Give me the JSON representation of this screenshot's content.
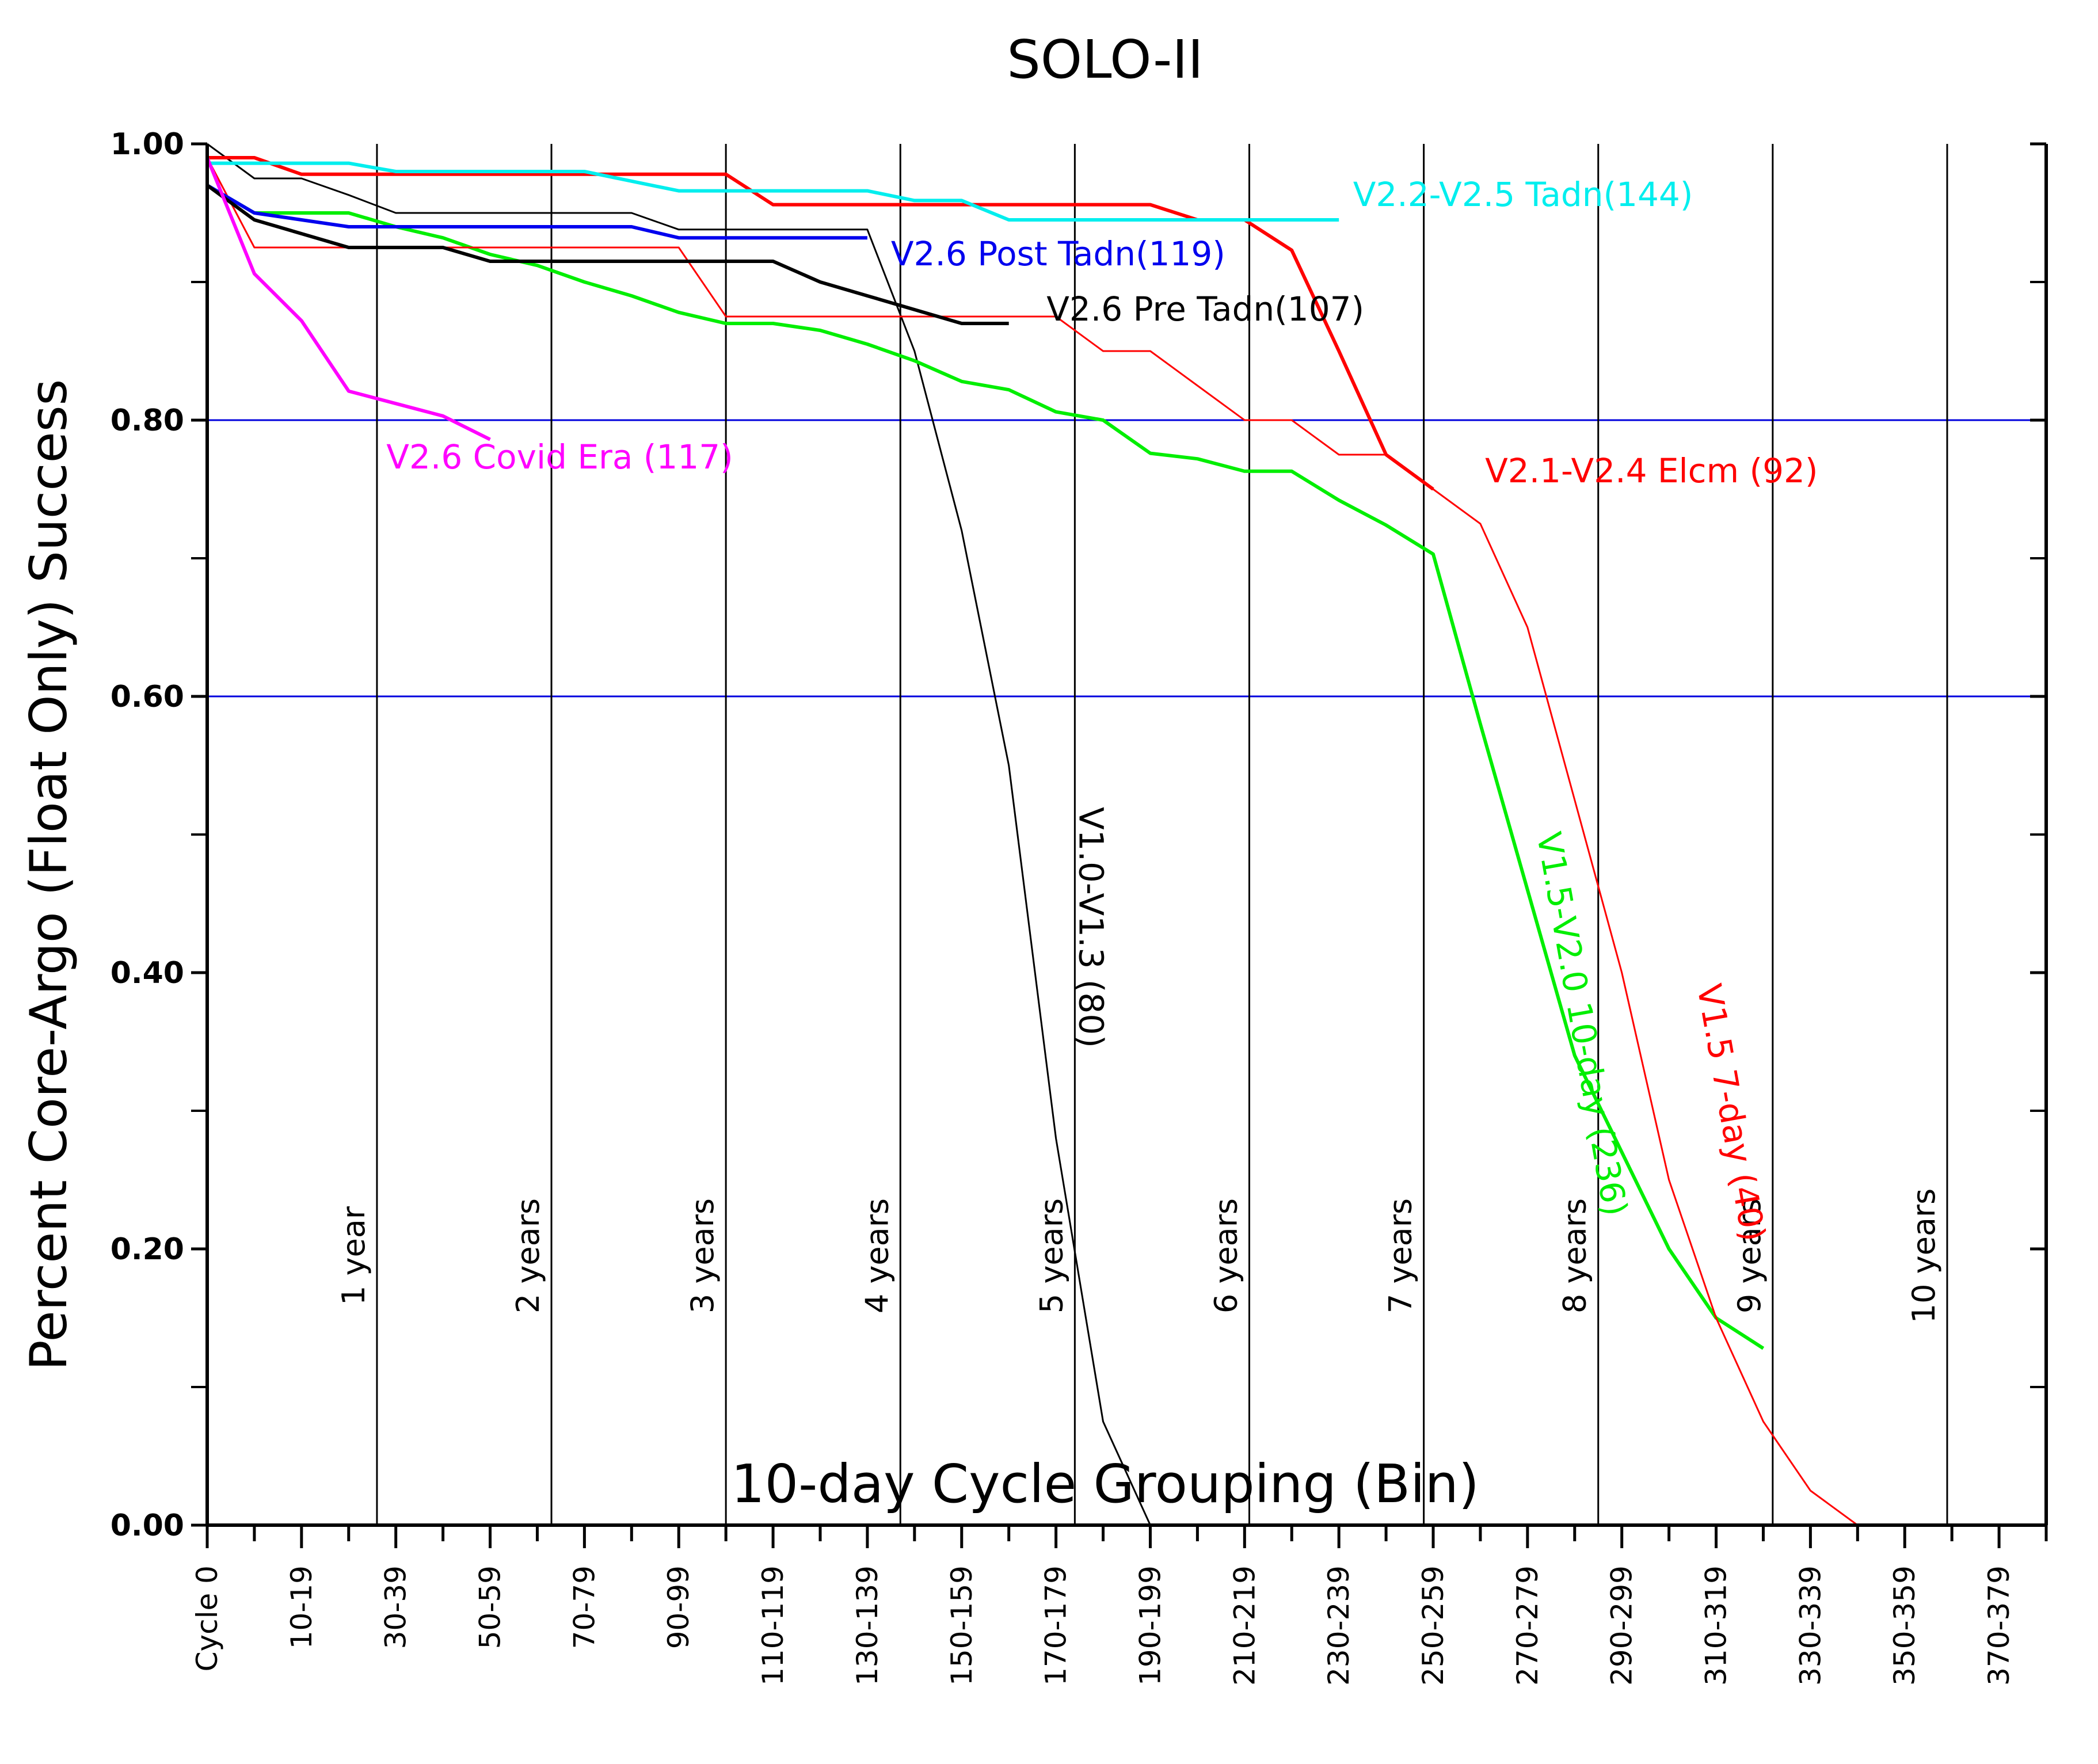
{
  "chart_data": {
    "type": "line",
    "title": "SOLO-II",
    "xlabel": "10-day Cycle Grouping (Bin)",
    "ylabel": "Percent Core-Argo (Float Only) Success",
    "x_unit": "cycle",
    "xlim": [
      0,
      390
    ],
    "ylim": [
      0,
      1
    ],
    "yticks": [
      {
        "v": 0.0,
        "label": "0.00"
      },
      {
        "v": 0.2,
        "label": "0.20"
      },
      {
        "v": 0.4,
        "label": "0.40"
      },
      {
        "v": 0.6,
        "label": "0.60"
      },
      {
        "v": 0.8,
        "label": "0.80"
      },
      {
        "v": 1.0,
        "label": "1.00"
      }
    ],
    "yminor": [
      0.1,
      0.3,
      0.5,
      0.7,
      0.9
    ],
    "xticks": [
      {
        "v": 0,
        "label": "Cycle 0"
      },
      {
        "v": 20,
        "label": "10-19"
      },
      {
        "v": 40,
        "label": "30-39"
      },
      {
        "v": 60,
        "label": "50-59"
      },
      {
        "v": 80,
        "label": "70-79"
      },
      {
        "v": 100,
        "label": "90-99"
      },
      {
        "v": 120,
        "label": "110-119"
      },
      {
        "v": 140,
        "label": "130-139"
      },
      {
        "v": 160,
        "label": "150-159"
      },
      {
        "v": 180,
        "label": "170-179"
      },
      {
        "v": 200,
        "label": "190-199"
      },
      {
        "v": 220,
        "label": "210-219"
      },
      {
        "v": 240,
        "label": "230-239"
      },
      {
        "v": 260,
        "label": "250-259"
      },
      {
        "v": 280,
        "label": "270-279"
      },
      {
        "v": 300,
        "label": "290-299"
      },
      {
        "v": 320,
        "label": "310-319"
      },
      {
        "v": 340,
        "label": "330-339"
      },
      {
        "v": 360,
        "label": "350-359"
      },
      {
        "v": 380,
        "label": "370-379"
      }
    ],
    "reference_lines": [
      {
        "y": 0.8,
        "color": "#0000dd"
      },
      {
        "y": 0.6,
        "color": "#0000dd"
      }
    ],
    "year_markers": [
      {
        "x": 36,
        "label": "1 year"
      },
      {
        "x": 73,
        "label": "2 years"
      },
      {
        "x": 110,
        "label": "3 years"
      },
      {
        "x": 147,
        "label": "4 years"
      },
      {
        "x": 184,
        "label": "5 years"
      },
      {
        "x": 221,
        "label": "6 years"
      },
      {
        "x": 258,
        "label": "7 years"
      },
      {
        "x": 295,
        "label": "8 years"
      },
      {
        "x": 332,
        "label": "9 years"
      },
      {
        "x": 369,
        "label": "10 years"
      }
    ],
    "series": [
      {
        "name": "V1.0-V1.3 (80)",
        "color": "#000000",
        "width": 2,
        "label_pos": [
          185,
          0.52
        ],
        "label_rotate": 90,
        "x": [
          0,
          10,
          20,
          30,
          40,
          50,
          60,
          70,
          80,
          90,
          100,
          110,
          120,
          130,
          140,
          150,
          160,
          170,
          180,
          190,
          200
        ],
        "y": [
          1.0,
          0.975,
          0.975,
          0.963,
          0.95,
          0.95,
          0.95,
          0.95,
          0.95,
          0.95,
          0.938,
          0.938,
          0.938,
          0.938,
          0.938,
          0.85,
          0.72,
          0.55,
          0.28,
          0.075,
          0.0
        ]
      },
      {
        "name": "V1.5-V2.0 10-day (236)",
        "color": "#00ee00",
        "width": 4,
        "label_pos": [
          282,
          0.5
        ],
        "label_rotate": 80,
        "x": [
          0,
          10,
          20,
          30,
          40,
          50,
          60,
          70,
          80,
          90,
          100,
          110,
          120,
          130,
          140,
          150,
          160,
          170,
          180,
          190,
          200,
          210,
          220,
          230,
          240,
          250,
          260,
          270,
          280,
          290,
          300,
          310,
          320,
          330
        ],
        "y": [
          0.97,
          0.95,
          0.95,
          0.95,
          0.94,
          0.932,
          0.92,
          0.912,
          0.9,
          0.89,
          0.878,
          0.87,
          0.87,
          0.865,
          0.855,
          0.843,
          0.828,
          0.822,
          0.806,
          0.8,
          0.776,
          0.772,
          0.763,
          0.763,
          0.742,
          0.724,
          0.703,
          0.58,
          0.46,
          0.34,
          0.27,
          0.2,
          0.15,
          0.128
        ]
      },
      {
        "name": "V1.5 7-day (40)",
        "color": "#ff0000",
        "width": 2,
        "label_pos": [
          316,
          0.39
        ],
        "label_rotate": 80,
        "x": [
          0,
          10,
          20,
          30,
          40,
          50,
          60,
          70,
          80,
          90,
          100,
          110,
          120,
          130,
          140,
          150,
          160,
          170,
          180,
          190,
          200,
          210,
          220,
          230,
          240,
          250,
          260,
          270,
          280,
          290,
          300,
          310,
          320,
          330,
          340,
          350
        ],
        "y": [
          0.99,
          0.925,
          0.925,
          0.925,
          0.925,
          0.925,
          0.925,
          0.925,
          0.925,
          0.925,
          0.925,
          0.875,
          0.875,
          0.875,
          0.875,
          0.875,
          0.875,
          0.875,
          0.875,
          0.85,
          0.85,
          0.825,
          0.8,
          0.8,
          0.775,
          0.775,
          0.75,
          0.725,
          0.65,
          0.525,
          0.4,
          0.25,
          0.15,
          0.075,
          0.025,
          0.0
        ]
      },
      {
        "name": "V2.1-V2.4 Elcm (92)",
        "color": "#ff0000",
        "width": 4,
        "label_pos": [
          271,
          0.755
        ],
        "label_rotate": 0,
        "x": [
          0,
          10,
          20,
          30,
          40,
          50,
          60,
          70,
          80,
          90,
          100,
          110,
          120,
          130,
          140,
          150,
          160,
          170,
          180,
          190,
          200,
          210,
          220,
          230,
          240,
          250,
          260
        ],
        "y": [
          0.99,
          0.99,
          0.978,
          0.978,
          0.978,
          0.978,
          0.978,
          0.978,
          0.978,
          0.978,
          0.978,
          0.978,
          0.956,
          0.956,
          0.956,
          0.956,
          0.956,
          0.956,
          0.956,
          0.956,
          0.956,
          0.945,
          0.945,
          0.923,
          0.85,
          0.775,
          0.75
        ]
      },
      {
        "name": "V2.2-V2.5 Tadn(144)",
        "color": "#00eeee",
        "width": 4,
        "label_pos": [
          243,
          0.955
        ],
        "label_rotate": 0,
        "x": [
          0,
          10,
          20,
          30,
          40,
          50,
          60,
          70,
          80,
          90,
          100,
          110,
          120,
          130,
          140,
          150,
          160,
          170,
          180,
          190,
          200,
          210,
          220,
          230,
          240
        ],
        "y": [
          0.986,
          0.986,
          0.986,
          0.986,
          0.98,
          0.98,
          0.98,
          0.98,
          0.98,
          0.973,
          0.966,
          0.966,
          0.966,
          0.966,
          0.966,
          0.959,
          0.959,
          0.945,
          0.945,
          0.945,
          0.945,
          0.945,
          0.945,
          0.945,
          0.945
        ]
      },
      {
        "name": "V2.6 Post Tadn(119)",
        "color": "#0000ee",
        "width": 4,
        "label_pos": [
          145,
          0.912
        ],
        "label_rotate": 0,
        "x": [
          0,
          10,
          20,
          30,
          40,
          50,
          60,
          70,
          80,
          90,
          100,
          110,
          120,
          130,
          140
        ],
        "y": [
          0.97,
          0.95,
          0.945,
          0.94,
          0.94,
          0.94,
          0.94,
          0.94,
          0.94,
          0.94,
          0.932,
          0.932,
          0.932,
          0.932,
          0.932
        ]
      },
      {
        "name": "V2.6 Pre Tadn(107)",
        "color": "#000000",
        "width": 4,
        "label_pos": [
          178,
          0.872
        ],
        "label_rotate": 0,
        "x": [
          0,
          10,
          20,
          30,
          40,
          50,
          60,
          70,
          80,
          90,
          100,
          110,
          120,
          130,
          140,
          150,
          160,
          170
        ],
        "y": [
          0.97,
          0.945,
          0.935,
          0.925,
          0.925,
          0.925,
          0.915,
          0.915,
          0.915,
          0.915,
          0.915,
          0.915,
          0.915,
          0.9,
          0.89,
          0.88,
          0.87,
          0.87
        ]
      },
      {
        "name": "V2.6 Covid Era (117)",
        "color": "#ff00ff",
        "width": 4,
        "label_pos": [
          38,
          0.765
        ],
        "label_rotate": 0,
        "x": [
          0,
          10,
          20,
          30,
          40,
          50,
          60
        ],
        "y": [
          0.99,
          0.906,
          0.872,
          0.821,
          0.812,
          0.803,
          0.786
        ]
      }
    ]
  }
}
